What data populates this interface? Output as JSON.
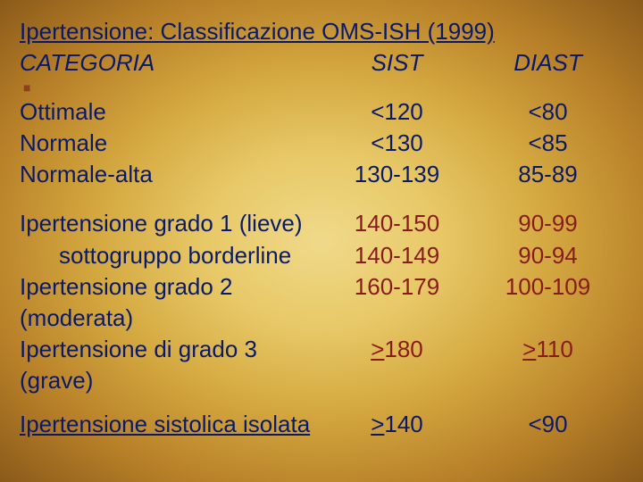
{
  "title": "Ipertensione: Classificazione OMS-ISH (1999)",
  "headers": {
    "cat": "CATEGORIA",
    "sist": "SIST",
    "diast": "DIAST"
  },
  "group1": [
    {
      "label": "Ottimale",
      "sist": "<120",
      "diast": "<80"
    },
    {
      "label": "Normale",
      "sist": "<130",
      "diast": "<85"
    },
    {
      "label": "Normale-alta",
      "sist": "130-139",
      "diast": "85-89"
    }
  ],
  "group2": [
    {
      "label": "Ipertensione grado 1 (lieve)",
      "sist": "140-150",
      "diast": "90-99",
      "indent": false
    },
    {
      "label": "sottogruppo borderline",
      "sist": "140-149",
      "diast": "90-94",
      "indent": true
    },
    {
      "label": "Ipertensione grado 2 (moderata)",
      "sist": "160-179",
      "diast": "100-109",
      "indent": false
    },
    {
      "label": "Ipertensione di grado 3 (grave)",
      "sist": ">180",
      "diast": ">110",
      "indent": false
    }
  ],
  "isolated": {
    "label": "Ipertensione sistolica isolata",
    "sist": ">140",
    "diast": "<90"
  },
  "underline_char": ">",
  "colors": {
    "blue": "#0a1a6a",
    "red": "#8a1b1b",
    "bg_center": "#f0d98a",
    "bg_edge": "#8a5a1a"
  },
  "font": {
    "family": "Comic Sans MS",
    "size_pt": 26
  }
}
